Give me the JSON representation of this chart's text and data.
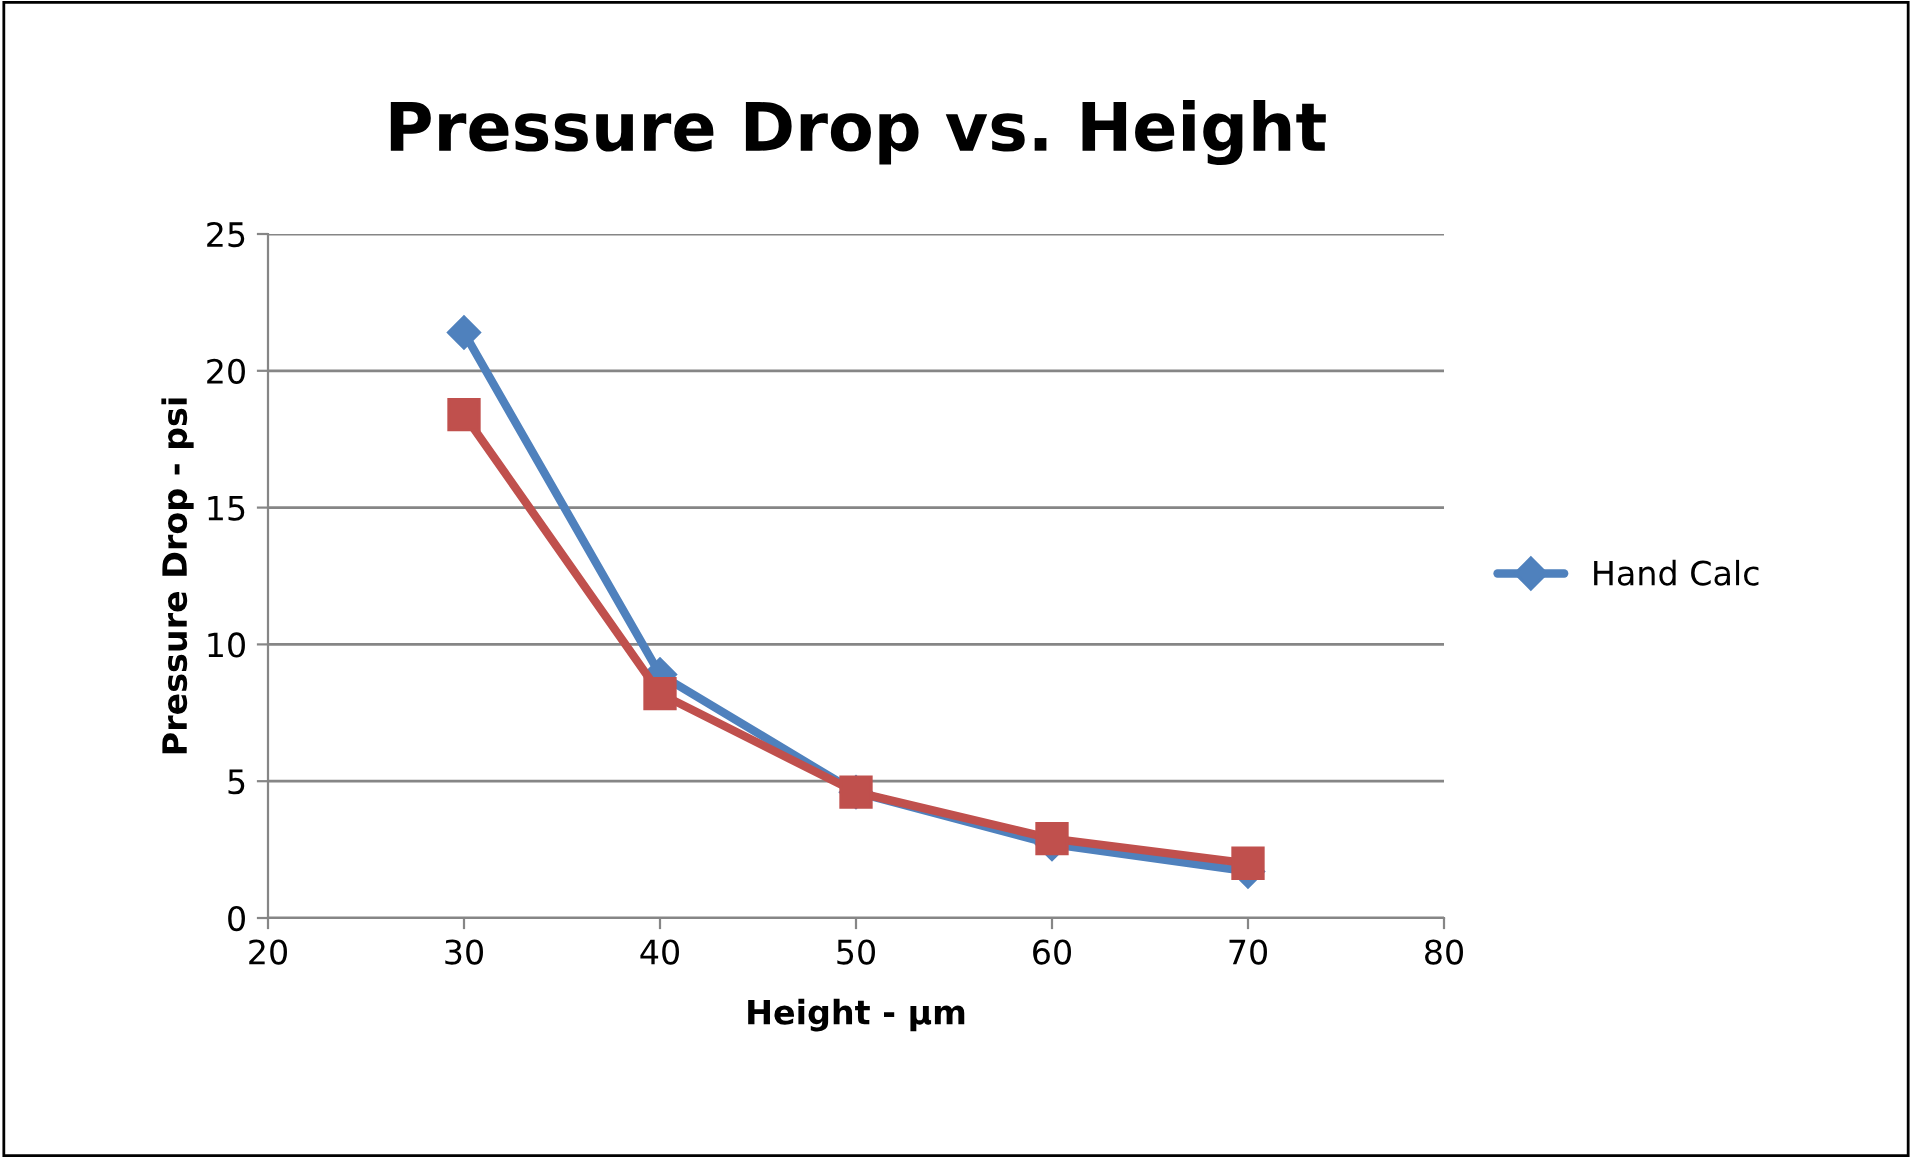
{
  "chart_data": {
    "type": "line",
    "title": "Pressure Drop vs. Height",
    "xlabel": "Height - µm",
    "ylabel": "Pressure Drop - psi",
    "x": [
      30,
      40,
      50,
      60,
      70
    ],
    "series": [
      {
        "name": "Hand Calc",
        "color": "#4f81bd",
        "marker": "diamond",
        "values": [
          21.4,
          8.9,
          4.6,
          2.7,
          1.7
        ]
      },
      {
        "color": "#c0504d",
        "marker": "square",
        "values": [
          18.4,
          8.2,
          4.6,
          2.9,
          2.0
        ]
      }
    ],
    "xlim": [
      20,
      80
    ],
    "xticks": [
      20,
      30,
      40,
      50,
      60,
      70,
      80
    ],
    "ylim": [
      0,
      25
    ],
    "yticks": [
      0,
      5,
      10,
      15,
      20,
      25
    ],
    "grid": "y",
    "legend": "right",
    "line_style": "solid"
  }
}
